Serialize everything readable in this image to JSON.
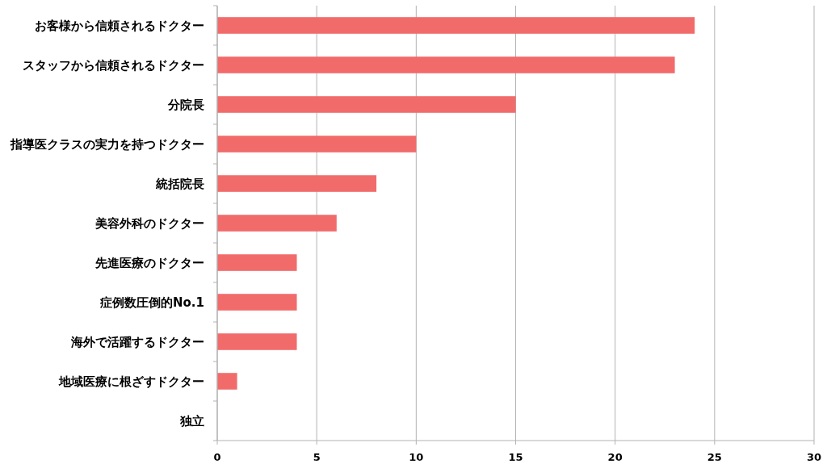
{
  "chart_data": {
    "type": "bar",
    "orientation": "horizontal",
    "categories": [
      "お客様から信頼されるドクター",
      "スタッフから信頼されるドクター",
      "分院長",
      "指導医クラスの実力を持つドクター",
      "統括院長",
      "美容外科のドクター",
      "先進医療のドクター",
      "症例数圧倒的No.1",
      "海外で活躍するドクター",
      "地域医療に根ざすドクター",
      "独立"
    ],
    "values": [
      24,
      23,
      15,
      10,
      8,
      6,
      4,
      4,
      4,
      1,
      0
    ],
    "color": "#f26b6b",
    "xlim": [
      0,
      30
    ],
    "xticks": [
      0,
      5,
      10,
      15,
      20,
      25,
      30
    ],
    "grid": "x"
  }
}
